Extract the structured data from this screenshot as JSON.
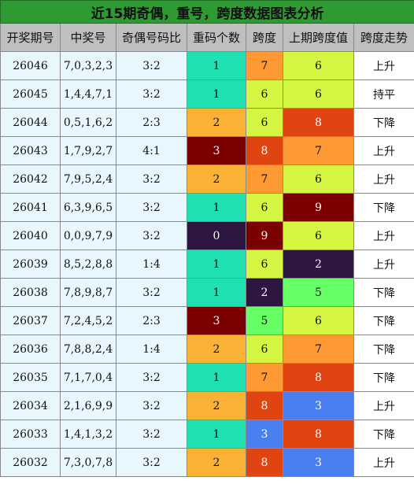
{
  "title": "近15期奇偶，重号，跨度数据图表分析",
  "headers": [
    "开奖期号",
    "中奖号",
    "奇偶号码比",
    "重码个数",
    "跨度",
    "上期跨度值",
    "跨度走势"
  ],
  "rows": [
    {
      "issue": "26046",
      "numbers": "7,0,3,2,3",
      "odd_even": "3:2",
      "repeat": "1",
      "span": "7",
      "prev_span": "6",
      "trend": "上升"
    },
    {
      "issue": "26045",
      "numbers": "1,4,4,7,1",
      "odd_even": "3:2",
      "repeat": "1",
      "span": "6",
      "prev_span": "6",
      "trend": "持平"
    },
    {
      "issue": "26044",
      "numbers": "0,5,1,6,2",
      "odd_even": "2:3",
      "repeat": "2",
      "span": "6",
      "prev_span": "8",
      "trend": "下降"
    },
    {
      "issue": "26043",
      "numbers": "1,7,9,2,7",
      "odd_even": "4:1",
      "repeat": "3",
      "span": "8",
      "prev_span": "7",
      "trend": "上升"
    },
    {
      "issue": "26042",
      "numbers": "7,9,5,2,4",
      "odd_even": "3:2",
      "repeat": "2",
      "span": "7",
      "prev_span": "6",
      "trend": "上升"
    },
    {
      "issue": "26041",
      "numbers": "6,3,9,6,5",
      "odd_even": "3:2",
      "repeat": "1",
      "span": "6",
      "prev_span": "9",
      "trend": "下降"
    },
    {
      "issue": "26040",
      "numbers": "0,0,9,7,9",
      "odd_even": "3:2",
      "repeat": "0",
      "span": "9",
      "prev_span": "6",
      "trend": "上升"
    },
    {
      "issue": "26039",
      "numbers": "8,5,2,8,8",
      "odd_even": "1:4",
      "repeat": "1",
      "span": "6",
      "prev_span": "2",
      "trend": "上升"
    },
    {
      "issue": "26038",
      "numbers": "7,8,9,8,7",
      "odd_even": "3:2",
      "repeat": "1",
      "span": "2",
      "prev_span": "5",
      "trend": "下降"
    },
    {
      "issue": "26037",
      "numbers": "7,2,4,5,2",
      "odd_even": "2:3",
      "repeat": "3",
      "span": "5",
      "prev_span": "6",
      "trend": "下降"
    },
    {
      "issue": "26036",
      "numbers": "7,8,8,2,4",
      "odd_even": "1:4",
      "repeat": "2",
      "span": "6",
      "prev_span": "7",
      "trend": "下降"
    },
    {
      "issue": "26035",
      "numbers": "7,1,7,0,4",
      "odd_even": "3:2",
      "repeat": "1",
      "span": "7",
      "prev_span": "8",
      "trend": "下降"
    },
    {
      "issue": "26034",
      "numbers": "2,1,6,9,9",
      "odd_even": "3:2",
      "repeat": "2",
      "span": "8",
      "prev_span": "3",
      "trend": "上升"
    },
    {
      "issue": "26033",
      "numbers": "1,4,1,3,2",
      "odd_even": "3:2",
      "repeat": "1",
      "span": "3",
      "prev_span": "8",
      "trend": "下降"
    },
    {
      "issue": "26032",
      "numbers": "7,3,0,7,8",
      "odd_even": "3:2",
      "repeat": "2",
      "span": "8",
      "prev_span": "3",
      "trend": "上升"
    }
  ],
  "colors": {
    "title_bg": "#2f9a34",
    "header_bg": "#bfbfbf",
    "light_cell": "#e8f7fd",
    "repeat": {
      "0": "#2d1640",
      "1": "#1fe0b0",
      "2": "#f9b233",
      "3": "#7a0000"
    },
    "span": {
      "2": "#2d1640",
      "3": "#4a7ff0",
      "5": "#66ff66",
      "6": "#d4f542",
      "7": "#ff9933",
      "8": "#e04410",
      "9": "#7a0000"
    },
    "dark_text_values": [
      "0",
      "3",
      "9",
      "2"
    ]
  }
}
